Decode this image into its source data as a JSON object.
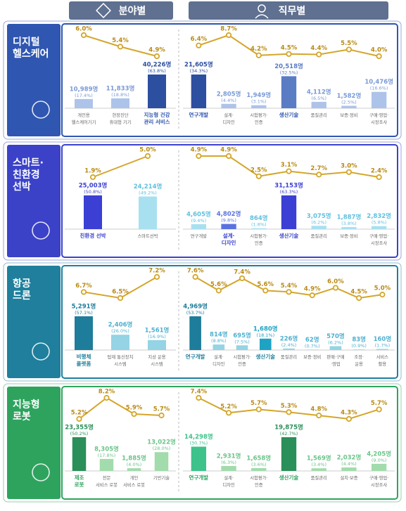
{
  "tabs": [
    "분야별",
    "직무별"
  ],
  "sections": [
    {
      "title": [
        "디지털",
        "헬스케어"
      ],
      "color": "#2f56b0"
    },
    {
      "title": [
        "스마트·",
        "친환경",
        "선박"
      ],
      "color": "#3b42c8"
    },
    {
      "title": [
        "항공",
        "드론"
      ],
      "color": "#1f7f9c"
    },
    {
      "title": [
        "지능형",
        "로봇"
      ],
      "color": "#2ea35e"
    }
  ],
  "chart_data": [
    {
      "type": "combo",
      "line_color": "#d4a62a",
      "label_color": "#7a9ad6",
      "categories": [
        [
          "개인용",
          "헬스케어기기"
        ],
        [
          "현장진단",
          "휴대형 기기"
        ],
        [
          "지능형 건강",
          "관리 서비스"
        ]
      ],
      "bars": {
        "values": [
          10989,
          11833,
          40226
        ],
        "value_labels": [
          "10,989명",
          "11,833명",
          "40,226명"
        ]
      },
      "shares": {
        "values": [
          17.4,
          18.8,
          63.8
        ],
        "value_labels": [
          "(17.4%)",
          "(18.8%)",
          "(63.8%)"
        ]
      },
      "rates": {
        "values": [
          6.0,
          5.4,
          4.9
        ],
        "value_labels": [
          "6.0%",
          "5.4%",
          "4.9%"
        ]
      },
      "colors": [
        "#aec3ea",
        "#aec3ea",
        "#2d4fa0"
      ],
      "bold": [
        false,
        false,
        true
      ]
    },
    {
      "type": "combo",
      "line_color": "#d4a62a",
      "label_color": "#7a9ad6",
      "categories": [
        [
          "연구개발"
        ],
        [
          "설계·",
          "디자인"
        ],
        [
          "시험평가·",
          "인증"
        ],
        [
          "생산기술"
        ],
        [
          "품질관리"
        ],
        [
          "보증·정비"
        ],
        [
          "구매·영업·",
          "시장조사"
        ]
      ],
      "bars": {
        "values": [
          21605,
          2805,
          1949,
          20518,
          4112,
          1582,
          10476
        ],
        "value_labels": [
          "21,605명",
          "2,805명",
          "1,949명",
          "20,518명",
          "4,112명",
          "1,582명",
          "10,476명"
        ]
      },
      "shares": {
        "values": [
          34.3,
          4.4,
          3.1,
          32.5,
          6.5,
          2.5,
          16.6
        ],
        "value_labels": [
          "(34.3%)",
          "(4.4%)",
          "(3.1%)",
          "(32.5%)",
          "(6.5%)",
          "(2.5%)",
          "(16.6%)"
        ]
      },
      "rates": {
        "values": [
          6.4,
          8.7,
          4.2,
          4.5,
          4.4,
          5.5,
          4.0
        ],
        "value_labels": [
          "6.4%",
          "8.7%",
          "4.2%",
          "4.5%",
          "4.4%",
          "5.5%",
          "4.0%"
        ]
      },
      "colors": [
        "#2d4fa0",
        "#aec3ea",
        "#aec3ea",
        "#5a7cc4",
        "#aec3ea",
        "#aec3ea",
        "#aec3ea"
      ],
      "bold": [
        true,
        false,
        false,
        true,
        false,
        false,
        false
      ]
    },
    {
      "type": "combo",
      "line_color": "#d4a62a",
      "label_color": "#5fc0df",
      "categories": [
        [
          "친환경 선박"
        ],
        [
          "스마트선박"
        ]
      ],
      "bars": {
        "values": [
          25003,
          24214
        ],
        "value_labels": [
          "25,003명",
          "24,214명"
        ]
      },
      "shares": {
        "values": [
          50.8,
          49.2
        ],
        "value_labels": [
          "(50.8%)",
          "(49.2%)"
        ]
      },
      "rates": {
        "values": [
          1.9,
          5.0
        ],
        "value_labels": [
          "1.9%",
          "5.0%"
        ]
      },
      "colors": [
        "#3b3fd4",
        "#a9e0f0"
      ],
      "bold": [
        true,
        false
      ]
    },
    {
      "type": "combo",
      "line_color": "#d4a62a",
      "label_color": "#5fc0df",
      "categories": [
        [
          "연구개발"
        ],
        [
          "설계·",
          "디자인"
        ],
        [
          "시험평가·",
          "인증"
        ],
        [
          "생산기술"
        ],
        [
          "품질관리"
        ],
        [
          "보증·정비"
        ],
        [
          "구매·영업·",
          "시장조사"
        ]
      ],
      "bars": {
        "values": [
          4605,
          4802,
          864,
          31153,
          3075,
          1887,
          2832
        ],
        "value_labels": [
          "4,605명",
          "4,802명",
          "864명",
          "31,153명",
          "3,075명",
          "1,887명",
          "2,832명"
        ]
      },
      "shares": {
        "values": [
          9.4,
          9.8,
          1.8,
          63.3,
          6.2,
          3.8,
          5.8
        ],
        "value_labels": [
          "(9.4%)",
          "(9.8%)",
          "(1.8%)",
          "(63.3%)",
          "(6.2%)",
          "(3.8%)",
          "(5.8%)"
        ]
      },
      "rates": {
        "values": [
          4.9,
          4.9,
          2.5,
          3.1,
          2.7,
          3.0,
          2.4
        ],
        "value_labels": [
          "4.9%",
          "4.9%",
          "2.5%",
          "3.1%",
          "2.7%",
          "3.0%",
          "2.4%"
        ]
      },
      "colors": [
        "#a9e0f0",
        "#5a72e0",
        "#a9e0f0",
        "#3b3fd4",
        "#a9e0f0",
        "#a9e0f0",
        "#a9e0f0"
      ],
      "bold": [
        false,
        true,
        false,
        true,
        false,
        false,
        false
      ]
    },
    {
      "type": "combo",
      "line_color": "#d4a62a",
      "label_color": "#4fb0cf",
      "categories": [
        [
          "비행체",
          "플랫폼"
        ],
        [
          "탑재 통신장치",
          "시스템"
        ],
        [
          "지상 운용",
          "시스템"
        ]
      ],
      "bars": {
        "values": [
          5291,
          2406,
          1561
        ],
        "value_labels": [
          "5,291명",
          "2,406명",
          "1,561명"
        ]
      },
      "shares": {
        "values": [
          57.1,
          26.0,
          16.9
        ],
        "value_labels": [
          "(57.1%)",
          "(26.0%)",
          "(16.9%)"
        ]
      },
      "rates": {
        "values": [
          6.7,
          6.5,
          7.2
        ],
        "value_labels": [
          "6.7%",
          "6.5%",
          "7.2%"
        ]
      },
      "colors": [
        "#1e7d9a",
        "#94d4e4",
        "#94d4e4"
      ],
      "bold": [
        true,
        false,
        false
      ]
    },
    {
      "type": "combo",
      "line_color": "#d4a62a",
      "label_color": "#4fb0cf",
      "categories": [
        [
          "연구개발"
        ],
        [
          "설계·",
          "디자인"
        ],
        [
          "시험평가·",
          "인증"
        ],
        [
          "생산기술"
        ],
        [
          "품질관리"
        ],
        [
          "보증·정비"
        ],
        [
          "판매·구매",
          "·영업"
        ],
        [
          "조정·",
          "운용"
        ],
        [
          "서비스",
          "활용"
        ]
      ],
      "bars": {
        "values": [
          4969,
          814,
          695,
          1680,
          226,
          62,
          570,
          83,
          160
        ],
        "value_labels": [
          "4,969명",
          "814명",
          "695명",
          "1,680명",
          "226명",
          "62명",
          "570명",
          "83명",
          "160명"
        ]
      },
      "shares": {
        "values": [
          53.7,
          8.8,
          7.5,
          18.1,
          2.4,
          0.7,
          6.2,
          0.9,
          1.7
        ],
        "value_labels": [
          "(53.7%)",
          "(8.8%)",
          "(7.5%)",
          "(18.1%)",
          "(2.4%)",
          "(0.7%)",
          "(6.2%)",
          "(0.9%)",
          "(1.7%)"
        ]
      },
      "rates": {
        "values": [
          7.6,
          5.6,
          7.4,
          5.6,
          5.4,
          4.9,
          6.0,
          4.5,
          5.0
        ],
        "value_labels": [
          "7.6%",
          "5.6%",
          "7.4%",
          "5.6%",
          "5.4%",
          "4.9%",
          "6.0%",
          "4.5%",
          "5.0%"
        ]
      },
      "colors": [
        "#1e7d9a",
        "#94d4e4",
        "#94d4e4",
        "#1fa3c4",
        "#94d4e4",
        "#94d4e4",
        "#94d4e4",
        "#94d4e4",
        "#94d4e4"
      ],
      "bold": [
        true,
        false,
        false,
        true,
        false,
        false,
        false,
        false,
        false
      ]
    },
    {
      "type": "combo",
      "line_color": "#d4a62a",
      "label_color": "#6cc48a",
      "categories": [
        [
          "제조",
          "로봇"
        ],
        [
          "전문",
          "서비스 로봇"
        ],
        [
          "개인",
          "서비스 로봇"
        ],
        [
          "기반기술"
        ]
      ],
      "bars": {
        "values": [
          23355,
          8305,
          1885,
          13022
        ],
        "value_labels": [
          "23,355명",
          "8,305명",
          "1,885명",
          "13,022명"
        ]
      },
      "shares": {
        "values": [
          50.2,
          17.8,
          4.0,
          28.0
        ],
        "value_labels": [
          "(50.2%)",
          "(17.8%)",
          "(4.0%)",
          "(28.0%)"
        ]
      },
      "rates": {
        "values": [
          5.2,
          8.2,
          5.9,
          5.7
        ],
        "value_labels": [
          "5.2%",
          "8.2%",
          "5.9%",
          "5.7%"
        ]
      },
      "colors": [
        "#2a8f58",
        "#a2dbac",
        "#a2dbac",
        "#a2dbac"
      ],
      "bold": [
        true,
        false,
        false,
        false
      ]
    },
    {
      "type": "combo",
      "line_color": "#d4a62a",
      "label_color": "#6cc48a",
      "categories": [
        [
          "연구개발"
        ],
        [
          "설계·",
          "디자인"
        ],
        [
          "시험평가·",
          "인증"
        ],
        [
          "생산기술"
        ],
        [
          "품질관리"
        ],
        [
          "설치·보증"
        ],
        [
          "구매·영업·",
          "시장조사"
        ]
      ],
      "bars": {
        "values": [
          14298,
          2931,
          1658,
          19875,
          1569,
          2032,
          4205
        ],
        "value_labels": [
          "14,298명",
          "2,931명",
          "1,658명",
          "19,875명",
          "1,569명",
          "2,032명",
          "4,205명"
        ]
      },
      "shares": {
        "values": [
          30.7,
          6.3,
          3.6,
          42.7,
          3.4,
          4.4,
          9.0
        ],
        "value_labels": [
          "(30.7%)",
          "(6.3%)",
          "(3.6%)",
          "(42.7%)",
          "(3.4%)",
          "(4.4%)",
          "(9.0%)"
        ]
      },
      "rates": {
        "values": [
          7.4,
          5.2,
          5.7,
          5.3,
          4.8,
          4.3,
          5.7
        ],
        "value_labels": [
          "7.4%",
          "5.2%",
          "5.7%",
          "5.3%",
          "4.8%",
          "4.3%",
          "5.7%"
        ]
      },
      "colors": [
        "#3cc28a",
        "#a2dbac",
        "#a2dbac",
        "#2a8f58",
        "#a2dbac",
        "#a2dbac",
        "#a2dbac"
      ],
      "bold": [
        true,
        false,
        false,
        true,
        false,
        false,
        false
      ]
    }
  ]
}
